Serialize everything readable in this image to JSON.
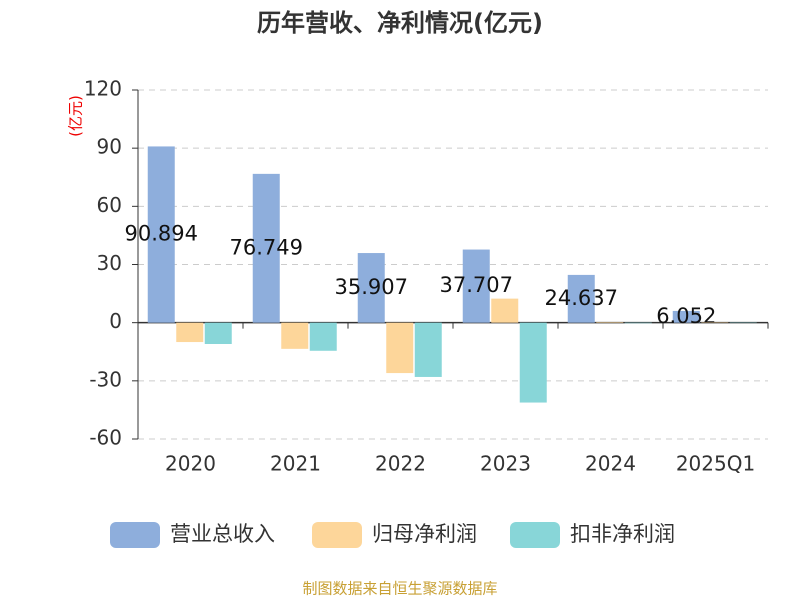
{
  "chart_data": {
    "type": "bar",
    "title": "历年营收、净利情况(亿元)",
    "y_label": "(亿元)",
    "categories": [
      "2020",
      "2021",
      "2022",
      "2023",
      "2024",
      "2025Q1"
    ],
    "series": [
      {
        "name": "营业总收入",
        "color": "#8eaedc",
        "values": [
          90.894,
          76.749,
          35.907,
          37.707,
          24.637,
          6.052
        ],
        "show_labels": true
      },
      {
        "name": "归母净利润",
        "color": "#fdd69a",
        "values": [
          -10,
          -13.5,
          -26,
          12.4,
          0.3,
          0.2
        ]
      },
      {
        "name": "扣非净利润",
        "color": "#88d6d8",
        "values": [
          -11,
          -14.5,
          -28,
          -41.2,
          -0.3,
          -0.2
        ]
      }
    ],
    "ylim": [
      -60,
      120
    ],
    "yticks": [
      -60,
      -30,
      0,
      30,
      60,
      90,
      120
    ],
    "grid": true,
    "legend": "bottom",
    "source": "制图数据来自恒生聚源数据库"
  }
}
